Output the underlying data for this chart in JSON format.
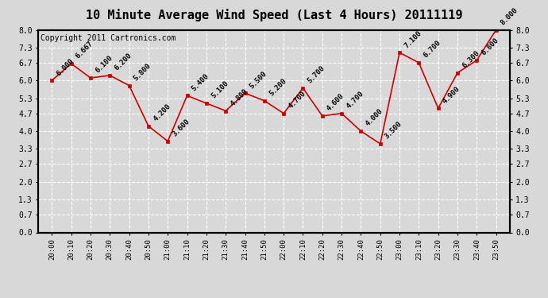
{
  "title": "10 Minute Average Wind Speed (Last 4 Hours) 20111119",
  "copyright": "Copyright 2011 Cartronics.com",
  "times": [
    "20:00",
    "20:10",
    "20:20",
    "20:30",
    "20:40",
    "20:50",
    "21:00",
    "21:10",
    "21:20",
    "21:30",
    "21:40",
    "21:50",
    "22:00",
    "22:10",
    "22:20",
    "22:30",
    "22:40",
    "22:50",
    "23:00",
    "23:10",
    "23:20",
    "23:30",
    "23:40",
    "23:50"
  ],
  "values": [
    6.0,
    6.667,
    6.1,
    6.2,
    5.8,
    4.2,
    3.6,
    5.4,
    5.1,
    4.8,
    5.5,
    5.2,
    4.7,
    5.7,
    4.6,
    4.7,
    4.0,
    3.5,
    7.1,
    6.7,
    4.9,
    6.3,
    6.8,
    8.0
  ],
  "line_color": "#cc0000",
  "marker_color": "#cc0000",
  "bg_color": "#d8d8d8",
  "plot_bg_color": "#d8d8d8",
  "grid_color": "#ffffff",
  "ylim": [
    0.0,
    8.0
  ],
  "yticks": [
    0.0,
    0.7,
    1.3,
    2.0,
    2.7,
    3.3,
    4.0,
    4.7,
    5.3,
    6.0,
    6.7,
    7.3,
    8.0
  ],
  "title_fontsize": 11,
  "copyright_fontsize": 7,
  "label_fontsize": 6.5
}
